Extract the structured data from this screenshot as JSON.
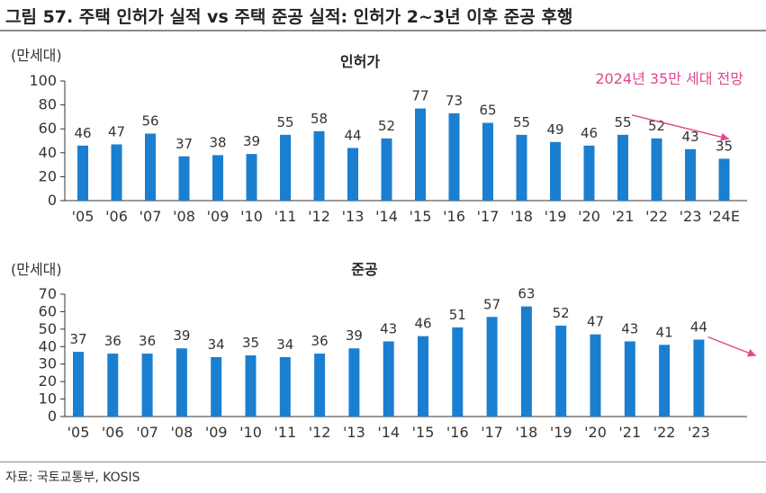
{
  "figure": {
    "title": "그림 57. 주택 인허가 실적 vs 주택 준공 실적: 인허가 2~3년 이후 준공 후행",
    "source": "자료: 국토교통부, KOSIS"
  },
  "colors": {
    "bar": "#1b7fd1",
    "annotation": "#e0488f",
    "axis": "#333333",
    "rule": "#8c8c8c"
  },
  "chart_data": [
    {
      "type": "bar",
      "title": "인허가",
      "ylabel": "(만세대)",
      "ylim": [
        0,
        100
      ],
      "yticks": [
        0,
        20,
        40,
        60,
        80,
        100
      ],
      "categories": [
        "'05",
        "'06",
        "'07",
        "'08",
        "'09",
        "'10",
        "'11",
        "'12",
        "'13",
        "'14",
        "'15",
        "'16",
        "'17",
        "'18",
        "'19",
        "'20",
        "'21",
        "'22",
        "'23",
        "'24E"
      ],
      "values": [
        46,
        47,
        56,
        37,
        38,
        39,
        55,
        58,
        44,
        52,
        77,
        73,
        65,
        55,
        49,
        46,
        55,
        52,
        43,
        35
      ],
      "annotation": {
        "text": "2024년 35만 세대 전망",
        "trend_from": "'21",
        "trend_to": "'24E"
      }
    },
    {
      "type": "bar",
      "title": "준공",
      "ylabel": "(만세대)",
      "ylim": [
        0,
        70
      ],
      "yticks": [
        0,
        10,
        20,
        30,
        40,
        50,
        60,
        70
      ],
      "categories": [
        "'05",
        "'06",
        "'07",
        "'08",
        "'09",
        "'10",
        "'11",
        "'12",
        "'13",
        "'14",
        "'15",
        "'16",
        "'17",
        "'18",
        "'19",
        "'20",
        "'21",
        "'22",
        "'23"
      ],
      "values": [
        37,
        36,
        36,
        39,
        34,
        35,
        34,
        36,
        39,
        43,
        46,
        51,
        57,
        63,
        52,
        47,
        43,
        41,
        44
      ],
      "annotation": {
        "text": "",
        "trend_from": "'23",
        "trend_to": "next"
      }
    }
  ]
}
